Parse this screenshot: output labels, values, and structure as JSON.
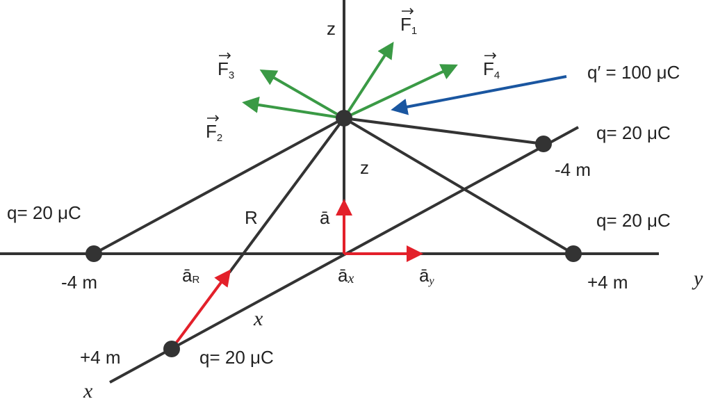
{
  "axes": {
    "z_top": "z",
    "z_mid": "z",
    "y": "y",
    "x_mid": "x",
    "x_end": "x",
    "R": "R"
  },
  "forces": [
    {
      "symbol": "F",
      "subscript": "1"
    },
    {
      "symbol": "F",
      "subscript": "2"
    },
    {
      "symbol": "F",
      "subscript": "3"
    },
    {
      "symbol": "F",
      "subscript": "4"
    }
  ],
  "charges": {
    "test": "q′ = 100 μC",
    "right_top": "q= 20 μC",
    "left": "q= 20 μC",
    "right": "q= 20 μC",
    "bottom": "q= 20 μC"
  },
  "positions": {
    "right_top": "-4 m",
    "left": "-4 m",
    "right": "+4 m",
    "bottom": "+4 m"
  },
  "unit_vectors": [
    {
      "symbol": "ā"
    },
    {
      "symbol": "ā",
      "subscript": "R"
    },
    {
      "symbol": "ā",
      "subscript": "x"
    },
    {
      "symbol": "ā",
      "subscript": "y"
    }
  ]
}
